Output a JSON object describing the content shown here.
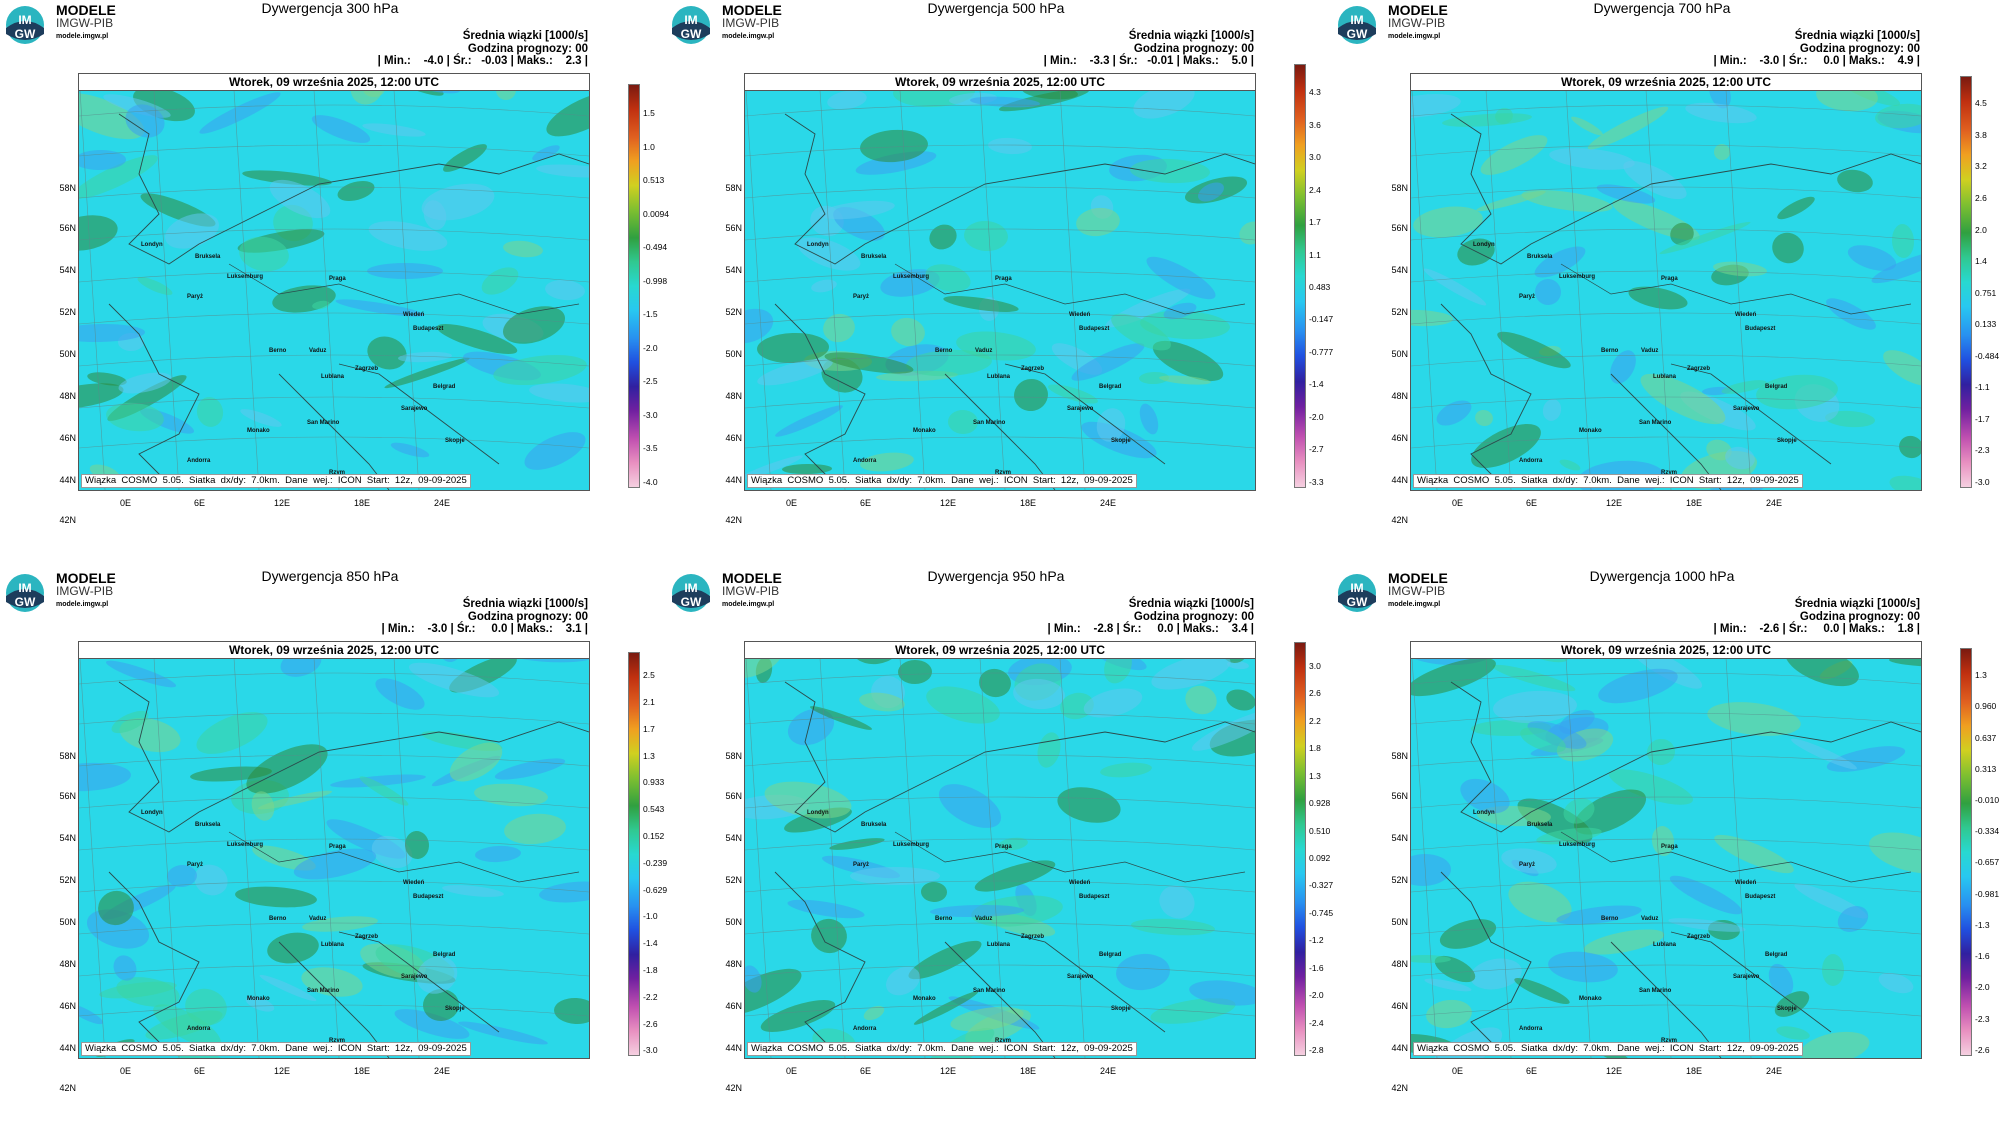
{
  "panels": [
    {
      "title": "Dywergencja 300 hPa",
      "stats": "| Min.:    -4.0 | Śr.:   -0.03 | Maks.:    2.3 |",
      "colorbar": [
        "1.5",
        "1.0",
        "0.513",
        "0.0094",
        "-0.494",
        "-0.998",
        "-1.5",
        "-2.0",
        "-2.5",
        "-3.0",
        "-3.5",
        "-4.0"
      ]
    },
    {
      "title": "Dywergencja 500 hPa",
      "stats": "| Min.:    -3.3 | Śr.:   -0.01 | Maks.:    5.0 |",
      "colorbar": [
        "4.3",
        "3.6",
        "3.0",
        "2.4",
        "1.7",
        "1.1",
        "0.483",
        "-0.147",
        "-0.777",
        "-1.4",
        "-2.0",
        "-2.7",
        "-3.3"
      ]
    },
    {
      "title": "Dywergencja 700 hPa",
      "stats": "| Min.:    -3.0 | Śr.:     0.0 | Maks.:    4.9 |",
      "colorbar": [
        "4.5",
        "3.8",
        "3.2",
        "2.6",
        "2.0",
        "1.4",
        "0.751",
        "0.133",
        "-0.484",
        "-1.1",
        "-1.7",
        "-2.3",
        "-3.0"
      ]
    },
    {
      "title": "Dywergencja 850 hPa",
      "stats": "| Min.:    -3.0 | Śr.:     0.0 | Maks.:    3.1 |",
      "colorbar": [
        "2.5",
        "2.1",
        "1.7",
        "1.3",
        "0.933",
        "0.543",
        "0.152",
        "-0.239",
        "-0.629",
        "-1.0",
        "-1.4",
        "-1.8",
        "-2.2",
        "-2.6",
        "-3.0"
      ]
    },
    {
      "title": "Dywergencja 950 hPa",
      "stats": "| Min.:    -2.8 | Śr.:     0.0 | Maks.:    3.4 |",
      "colorbar": [
        "3.0",
        "2.6",
        "2.2",
        "1.8",
        "1.3",
        "0.928",
        "0.510",
        "0.092",
        "-0.327",
        "-0.745",
        "-1.2",
        "-1.6",
        "-2.0",
        "-2.4",
        "-2.8"
      ]
    },
    {
      "title": "Dywergencja 1000 hPa",
      "stats": "| Min.:    -2.6 | Śr.:     0.0 | Maks.:    1.8 |",
      "colorbar": [
        "1.3",
        "0.960",
        "0.637",
        "0.313",
        "-0.010",
        "-0.334",
        "-0.657",
        "-0.981",
        "-1.3",
        "-1.6",
        "-2.0",
        "-2.3",
        "-2.6"
      ]
    }
  ],
  "common": {
    "logo_line1": "MODELE",
    "logo_line2": "IMGW-PIB",
    "logo_line3": "modele.imgw.pl",
    "logo_mark_top": "IM",
    "logo_mark_bottom": "GW",
    "mean_label": "Średnia wiązki [1000/s]",
    "forecast_hour": "Godzina prognozy: 00",
    "date": "Wtorek, 09 września 2025, 12:00 UTC",
    "footer": "Wiązka  COSMO  5.05.  Siatka  dx/dy:  7.0km.  Dane  wej.:  ICON  Start:  12z,  09-09-2025",
    "lat_labels": [
      "58N",
      "56N",
      "54N",
      "52N",
      "50N",
      "48N",
      "46N",
      "44N",
      "42N"
    ],
    "lon_labels": [
      "0E",
      "6E",
      "12E",
      "18E",
      "24E"
    ],
    "cities": [
      {
        "name": "Londyn"
      },
      {
        "name": "Bruksela"
      },
      {
        "name": "Paryż"
      },
      {
        "name": "Luksemburg"
      },
      {
        "name": "Praga"
      },
      {
        "name": "Wiedeń"
      },
      {
        "name": "Budapeszt"
      },
      {
        "name": "Berno"
      },
      {
        "name": "Vaduz"
      },
      {
        "name": "Zagrzeb"
      },
      {
        "name": "Lublana"
      },
      {
        "name": "Belgrad"
      },
      {
        "name": "Sarajewo"
      },
      {
        "name": "San Marino"
      },
      {
        "name": "Monako"
      },
      {
        "name": "Andorra"
      },
      {
        "name": "Rzym"
      },
      {
        "name": "Skopje"
      }
    ]
  },
  "colors": {
    "base_cyan": "#2ad8e8",
    "green": "#3cd6a0",
    "blue": "#3aa0f0",
    "dark_green": "#2e8a3a"
  }
}
